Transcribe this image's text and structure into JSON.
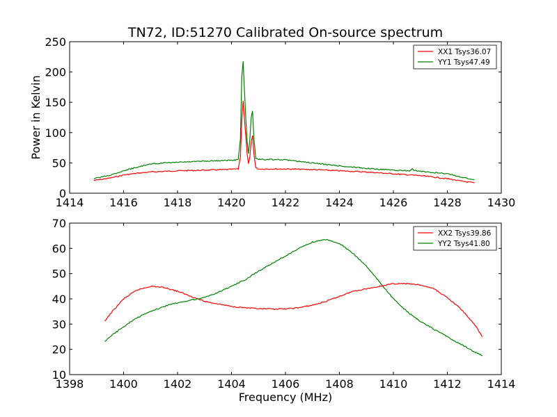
{
  "chart_data": [
    {
      "type": "line",
      "title": "TN72, ID:51270 Calibrated On-source spectrum",
      "xlabel": "",
      "ylabel": "Power in Kelvin",
      "xlim": [
        1414,
        1430
      ],
      "ylim": [
        0,
        250
      ],
      "xticks": [
        "1414",
        "1416",
        "1418",
        "1420",
        "1422",
        "1424",
        "1426",
        "1428",
        "1430"
      ],
      "yticks": [
        "0",
        "50",
        "100",
        "150",
        "200",
        "250"
      ],
      "grid": false,
      "legend_position": "top-right",
      "series": [
        {
          "name": "XX1 Tsys36.07",
          "color": "#ff0000",
          "points": [
            [
              1414.9,
              21
            ],
            [
              1415.5,
              25
            ],
            [
              1416,
              30
            ],
            [
              1416.5,
              33
            ],
            [
              1417,
              35
            ],
            [
              1417.5,
              36
            ],
            [
              1418,
              37
            ],
            [
              1419,
              38
            ],
            [
              1419.8,
              39
            ],
            [
              1420.25,
              40
            ],
            [
              1420.33,
              60
            ],
            [
              1420.38,
              120
            ],
            [
              1420.43,
              153
            ],
            [
              1420.5,
              110
            ],
            [
              1420.58,
              65
            ],
            [
              1420.63,
              48
            ],
            [
              1420.68,
              60
            ],
            [
              1420.73,
              85
            ],
            [
              1420.78,
              95
            ],
            [
              1420.83,
              65
            ],
            [
              1420.9,
              42
            ],
            [
              1421,
              40
            ],
            [
              1422,
              40
            ],
            [
              1423,
              39
            ],
            [
              1424,
              37
            ],
            [
              1425,
              35
            ],
            [
              1426,
              32
            ],
            [
              1427,
              29
            ],
            [
              1428,
              24
            ],
            [
              1428.5,
              20
            ],
            [
              1429,
              17
            ]
          ]
        },
        {
          "name": "YY1 Tsys47.49",
          "color": "#008000",
          "points": [
            [
              1414.9,
              24
            ],
            [
              1415.5,
              30
            ],
            [
              1416,
              37
            ],
            [
              1416.5,
              43
            ],
            [
              1417,
              48
            ],
            [
              1417.5,
              50
            ],
            [
              1418,
              51
            ],
            [
              1419,
              53
            ],
            [
              1419.8,
              54
            ],
            [
              1420.25,
              55
            ],
            [
              1420.33,
              90
            ],
            [
              1420.38,
              190
            ],
            [
              1420.43,
              218
            ],
            [
              1420.5,
              150
            ],
            [
              1420.58,
              85
            ],
            [
              1420.63,
              66
            ],
            [
              1420.68,
              90
            ],
            [
              1420.73,
              125
            ],
            [
              1420.78,
              135
            ],
            [
              1420.83,
              90
            ],
            [
              1420.9,
              58
            ],
            [
              1421,
              56
            ],
            [
              1422,
              55
            ],
            [
              1423,
              50
            ],
            [
              1424,
              45
            ],
            [
              1425,
              41
            ],
            [
              1426,
              38
            ],
            [
              1426.6,
              37
            ],
            [
              1426.7,
              40
            ],
            [
              1426.8,
              37
            ],
            [
              1427,
              36
            ],
            [
              1428,
              32
            ],
            [
              1428.5,
              27
            ],
            [
              1429,
              22
            ]
          ]
        }
      ]
    },
    {
      "type": "line",
      "title": "",
      "xlabel": "Frequency (MHz)",
      "ylabel": "",
      "xlim": [
        1398,
        1414
      ],
      "ylim": [
        10,
        70
      ],
      "xticks": [
        "1398",
        "1400",
        "1402",
        "1404",
        "1406",
        "1408",
        "1410",
        "1412",
        "1414"
      ],
      "yticks": [
        "10",
        "20",
        "30",
        "40",
        "50",
        "60",
        "70"
      ],
      "grid": false,
      "legend_position": "top-right",
      "series": [
        {
          "name": "XX2 Tsys39.86",
          "color": "#ff0000",
          "points": [
            [
              1399.3,
              31
            ],
            [
              1399.5,
              34
            ],
            [
              1400,
              40
            ],
            [
              1400.5,
              43.5
            ],
            [
              1401,
              45
            ],
            [
              1401.5,
              44.5
            ],
            [
              1402,
              43
            ],
            [
              1402.5,
              41
            ],
            [
              1403,
              39
            ],
            [
              1403.5,
              38
            ],
            [
              1404,
              37
            ],
            [
              1404.5,
              36.5
            ],
            [
              1405,
              36
            ],
            [
              1405.5,
              36
            ],
            [
              1406,
              36
            ],
            [
              1406.5,
              36.5
            ],
            [
              1407,
              37.5
            ],
            [
              1407.5,
              39
            ],
            [
              1408,
              41
            ],
            [
              1408.5,
              43
            ],
            [
              1409,
              44
            ],
            [
              1409.5,
              45
            ],
            [
              1410,
              46
            ],
            [
              1410.5,
              46
            ],
            [
              1411,
              45.5
            ],
            [
              1411.5,
              44
            ],
            [
              1412,
              40.5
            ],
            [
              1412.5,
              36
            ],
            [
              1413,
              30
            ],
            [
              1413.3,
              25
            ]
          ]
        },
        {
          "name": "YY2 Tsys41.80",
          "color": "#008000",
          "points": [
            [
              1399.3,
              23
            ],
            [
              1399.5,
              25
            ],
            [
              1400,
              29
            ],
            [
              1400.5,
              32.5
            ],
            [
              1401,
              35
            ],
            [
              1401.5,
              37
            ],
            [
              1402,
              38.5
            ],
            [
              1402.5,
              39.5
            ],
            [
              1403,
              40.5
            ],
            [
              1403.5,
              42.5
            ],
            [
              1404,
              45
            ],
            [
              1404.5,
              47.5
            ],
            [
              1405,
              51
            ],
            [
              1405.5,
              54
            ],
            [
              1406,
              57
            ],
            [
              1406.5,
              60
            ],
            [
              1407,
              62.5
            ],
            [
              1407.5,
              63.5
            ],
            [
              1408,
              62
            ],
            [
              1408.5,
              58
            ],
            [
              1409,
              53
            ],
            [
              1409.5,
              46.5
            ],
            [
              1410,
              40
            ],
            [
              1410.5,
              35
            ],
            [
              1411,
              31
            ],
            [
              1411.5,
              28
            ],
            [
              1412,
              25
            ],
            [
              1412.5,
              22
            ],
            [
              1413,
              19
            ],
            [
              1413.3,
              17.5
            ]
          ]
        }
      ]
    }
  ]
}
